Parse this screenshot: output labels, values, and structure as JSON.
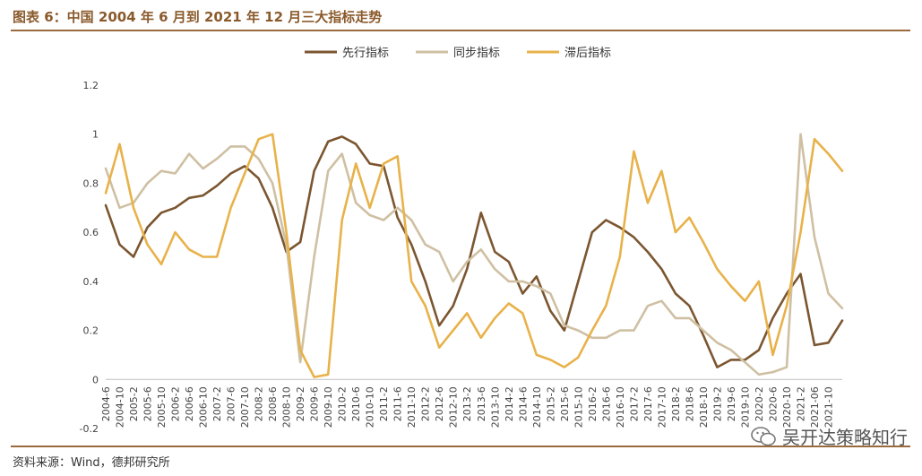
{
  "header": {
    "title": "图表 6：中国 2004 年 6 月到 2021 年 12 月三大指标走势"
  },
  "footer": {
    "source": "资料来源：Wind，德邦研究所",
    "watermark": "吴开达策略知行"
  },
  "chart_data": {
    "type": "line",
    "title": "",
    "xlabel": "",
    "ylabel": "",
    "ylim": [
      -0.2,
      1.2
    ],
    "yticks": [
      "-0.2",
      "0",
      "0.2",
      "0.4",
      "0.6",
      "0.8",
      "1",
      "1.2"
    ],
    "grid": false,
    "legend_position": "top-center",
    "x_tick_labels": [
      "2004-6",
      "2004-10",
      "2005-2",
      "2005-6",
      "2005-10",
      "2006-2",
      "2006-6",
      "2006-10",
      "2007-2",
      "2007-6",
      "2007-10",
      "2008-2",
      "2008-6",
      "2008-10",
      "2009-2",
      "2009-6",
      "2009-10",
      "2010-2",
      "2010-6",
      "2010-10",
      "2011-2",
      "2011-6",
      "2011-10",
      "2012-2",
      "2012-6",
      "2012-10",
      "2013-2",
      "2013-6",
      "2013-10",
      "2014-2",
      "2014-6",
      "2014-10",
      "2015-2",
      "2015-6",
      "2015-10",
      "2016-2",
      "2016-6",
      "2016-10",
      "2017-2",
      "2017-6",
      "2017-10",
      "2018-2",
      "2018-6",
      "2018-10",
      "2019-2",
      "2019-6",
      "2019-10",
      "2020-2",
      "2020-6",
      "2020-10",
      "2021-2",
      "2021-06",
      "2021-10"
    ],
    "x": [
      "2004-6",
      "2004-10",
      "2005-2",
      "2005-6",
      "2005-10",
      "2006-2",
      "2006-6",
      "2006-10",
      "2007-2",
      "2007-6",
      "2007-10",
      "2008-2",
      "2008-6",
      "2008-10",
      "2009-2",
      "2009-6",
      "2009-10",
      "2010-2",
      "2010-6",
      "2010-10",
      "2011-2",
      "2011-6",
      "2011-10",
      "2012-2",
      "2012-6",
      "2012-10",
      "2013-2",
      "2013-6",
      "2013-10",
      "2014-2",
      "2014-6",
      "2014-10",
      "2015-2",
      "2015-6",
      "2015-10",
      "2016-2",
      "2016-6",
      "2016-10",
      "2017-2",
      "2017-6",
      "2017-10",
      "2018-2",
      "2018-6",
      "2018-10",
      "2019-2",
      "2019-6",
      "2019-10",
      "2020-2",
      "2020-6",
      "2020-10",
      "2021-2",
      "2021-06",
      "2021-10",
      "2021-12"
    ],
    "series": [
      {
        "name": "先行指标",
        "color": "#7b5630",
        "values": [
          0.71,
          0.55,
          0.5,
          0.62,
          0.68,
          0.7,
          0.74,
          0.75,
          0.79,
          0.84,
          0.87,
          0.82,
          0.7,
          0.52,
          0.56,
          0.85,
          0.97,
          0.99,
          0.96,
          0.88,
          0.87,
          0.66,
          0.55,
          0.4,
          0.22,
          0.3,
          0.45,
          0.68,
          0.52,
          0.48,
          0.35,
          0.42,
          0.28,
          0.2,
          0.4,
          0.6,
          0.65,
          0.62,
          0.58,
          0.52,
          0.45,
          0.35,
          0.3,
          0.18,
          0.05,
          0.08,
          0.08,
          0.12,
          0.25,
          0.35,
          0.43,
          0.14,
          0.15,
          0.24
        ]
      },
      {
        "name": "同步指标",
        "color": "#cfc0a3",
        "values": [
          0.86,
          0.7,
          0.72,
          0.8,
          0.85,
          0.84,
          0.92,
          0.86,
          0.9,
          0.95,
          0.95,
          0.9,
          0.8,
          0.55,
          0.07,
          0.5,
          0.85,
          0.92,
          0.72,
          0.67,
          0.65,
          0.7,
          0.65,
          0.55,
          0.52,
          0.4,
          0.48,
          0.53,
          0.45,
          0.4,
          0.4,
          0.38,
          0.35,
          0.22,
          0.2,
          0.17,
          0.17,
          0.2,
          0.2,
          0.3,
          0.32,
          0.25,
          0.25,
          0.2,
          0.15,
          0.12,
          0.07,
          0.02,
          0.03,
          0.05,
          1.0,
          0.58,
          0.35,
          0.29
        ]
      },
      {
        "name": "滞后指标",
        "color": "#e8b24a",
        "values": [
          0.76,
          0.96,
          0.7,
          0.55,
          0.47,
          0.6,
          0.53,
          0.5,
          0.5,
          0.7,
          0.84,
          0.98,
          1.0,
          0.6,
          0.12,
          0.01,
          0.02,
          0.65,
          0.88,
          0.7,
          0.88,
          0.91,
          0.4,
          0.3,
          0.13,
          0.2,
          0.27,
          0.17,
          0.25,
          0.31,
          0.27,
          0.1,
          0.08,
          0.05,
          0.09,
          0.2,
          0.3,
          0.5,
          0.93,
          0.72,
          0.85,
          0.6,
          0.66,
          0.56,
          0.45,
          0.38,
          0.32,
          0.4,
          0.1,
          0.3,
          0.6,
          0.98,
          0.92,
          0.85
        ]
      }
    ]
  }
}
